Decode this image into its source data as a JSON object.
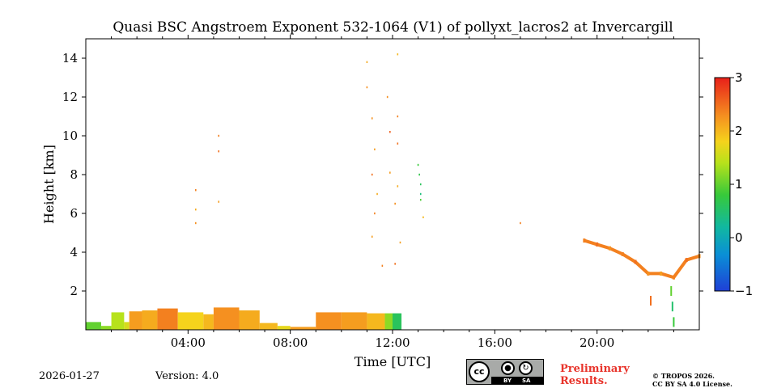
{
  "chart_data": {
    "type": "heatmap",
    "title": "Quasi BSC Angstroem Exponent 532-1064 (V1) of pollyxt_lacros2 at Invercargill",
    "xlabel": "Time [UTC]",
    "ylabel": "Height [km]",
    "xlim_hours": [
      0,
      24
    ],
    "ylim_km": [
      0,
      15
    ],
    "x_ticks": [
      {
        "value": 4,
        "label": "04:00"
      },
      {
        "value": 8,
        "label": "08:00"
      },
      {
        "value": 12,
        "label": "12:00"
      },
      {
        "value": 16,
        "label": "16:00"
      },
      {
        "value": 20,
        "label": "20:00"
      }
    ],
    "y_ticks": [
      {
        "value": 2,
        "label": "2"
      },
      {
        "value": 4,
        "label": "4"
      },
      {
        "value": 6,
        "label": "6"
      },
      {
        "value": 8,
        "label": "8"
      },
      {
        "value": 10,
        "label": "10"
      },
      {
        "value": 12,
        "label": "12"
      },
      {
        "value": 14,
        "label": "14"
      }
    ],
    "colorbar": {
      "vmin": -1,
      "vmax": 3,
      "ticks": [
        {
          "value": 3,
          "label": "3"
        },
        {
          "value": 2,
          "label": "2"
        },
        {
          "value": 1,
          "label": "1"
        },
        {
          "value": 0,
          "label": "0"
        },
        {
          "value": -1,
          "label": "−1"
        }
      ]
    },
    "boundary_layer_segments": [
      {
        "t0": 0.0,
        "t1": 0.6,
        "h0": 0.0,
        "h1": 0.4,
        "val": 1.0
      },
      {
        "t0": 0.6,
        "t1": 1.0,
        "h0": 0.0,
        "h1": 0.2,
        "val": 1.2
      },
      {
        "t0": 1.0,
        "t1": 1.5,
        "h0": 0.0,
        "h1": 0.9,
        "val": 1.4
      },
      {
        "t0": 1.5,
        "t1": 1.7,
        "h0": 0.0,
        "h1": 0.4,
        "val": 1.6
      },
      {
        "t0": 1.7,
        "t1": 2.2,
        "h0": 0.0,
        "h1": 0.95,
        "val": 2.2
      },
      {
        "t0": 2.2,
        "t1": 2.8,
        "h0": 0.0,
        "h1": 1.0,
        "val": 2.1
      },
      {
        "t0": 2.8,
        "t1": 3.6,
        "h0": 0.0,
        "h1": 1.1,
        "val": 2.4
      },
      {
        "t0": 3.6,
        "t1": 4.6,
        "h0": 0.0,
        "h1": 0.9,
        "val": 1.8
      },
      {
        "t0": 4.6,
        "t1": 5.0,
        "h0": 0.0,
        "h1": 0.8,
        "val": 2.0
      },
      {
        "t0": 5.0,
        "t1": 6.0,
        "h0": 0.0,
        "h1": 1.15,
        "val": 2.3
      },
      {
        "t0": 6.0,
        "t1": 6.8,
        "h0": 0.0,
        "h1": 1.0,
        "val": 2.1
      },
      {
        "t0": 6.8,
        "t1": 7.5,
        "h0": 0.0,
        "h1": 0.35,
        "val": 2.0
      },
      {
        "t0": 7.5,
        "t1": 8.0,
        "h0": 0.0,
        "h1": 0.2,
        "val": 1.7
      },
      {
        "t0": 8.0,
        "t1": 9.0,
        "h0": 0.0,
        "h1": 0.15,
        "val": 2.2
      },
      {
        "t0": 9.0,
        "t1": 10.0,
        "h0": 0.0,
        "h1": 0.9,
        "val": 2.3
      },
      {
        "t0": 10.0,
        "t1": 11.0,
        "h0": 0.0,
        "h1": 0.9,
        "val": 2.2
      },
      {
        "t0": 11.0,
        "t1": 11.7,
        "h0": 0.0,
        "h1": 0.85,
        "val": 2.0
      },
      {
        "t0": 11.7,
        "t1": 12.0,
        "h0": 0.0,
        "h1": 0.85,
        "val": 1.2
      },
      {
        "t0": 12.0,
        "t1": 12.35,
        "h0": 0.0,
        "h1": 0.85,
        "val": 0.6
      }
    ],
    "cloud_points": [
      {
        "t": 4.3,
        "h": 5.5,
        "val": 2.3
      },
      {
        "t": 4.3,
        "h": 6.2,
        "val": 2.1
      },
      {
        "t": 4.3,
        "h": 7.2,
        "val": 2.4
      },
      {
        "t": 5.2,
        "h": 6.6,
        "val": 2.2
      },
      {
        "t": 5.2,
        "h": 9.2,
        "val": 2.5
      },
      {
        "t": 5.2,
        "h": 10.0,
        "val": 2.4
      },
      {
        "t": 11.2,
        "h": 10.9,
        "val": 2.3
      },
      {
        "t": 11.3,
        "h": 9.3,
        "val": 2.2
      },
      {
        "t": 11.2,
        "h": 8.0,
        "val": 2.5
      },
      {
        "t": 11.4,
        "h": 7.0,
        "val": 2.1
      },
      {
        "t": 11.3,
        "h": 6.0,
        "val": 2.4
      },
      {
        "t": 11.2,
        "h": 4.8,
        "val": 2.2
      },
      {
        "t": 11.8,
        "h": 12.0,
        "val": 2.3
      },
      {
        "t": 11.9,
        "h": 10.2,
        "val": 2.6
      },
      {
        "t": 11.9,
        "h": 8.1,
        "val": 2.2
      },
      {
        "t": 12.1,
        "h": 6.5,
        "val": 2.3
      },
      {
        "t": 12.1,
        "h": 3.4,
        "val": 2.5
      },
      {
        "t": 12.2,
        "h": 14.2,
        "val": 2.0
      },
      {
        "t": 12.2,
        "h": 11.0,
        "val": 2.4
      },
      {
        "t": 11.0,
        "h": 13.8,
        "val": 2.1
      },
      {
        "t": 11.0,
        "h": 12.5,
        "val": 2.3
      },
      {
        "t": 12.2,
        "h": 9.6,
        "val": 2.5
      },
      {
        "t": 12.2,
        "h": 7.4,
        "val": 2.1
      },
      {
        "t": 12.3,
        "h": 4.5,
        "val": 2.2
      },
      {
        "t": 11.6,
        "h": 3.3,
        "val": 2.4
      },
      {
        "t": 13.2,
        "h": 5.8,
        "val": 2.0
      },
      {
        "t": 13.0,
        "h": 8.5,
        "val": 0.8
      },
      {
        "t": 13.05,
        "h": 8.0,
        "val": 0.7
      },
      {
        "t": 13.1,
        "h": 7.5,
        "val": 0.6
      },
      {
        "t": 13.1,
        "h": 7.0,
        "val": 0.4
      },
      {
        "t": 13.1,
        "h": 6.7,
        "val": 0.9
      },
      {
        "t": 17.0,
        "h": 5.5,
        "val": 2.4
      }
    ],
    "evening_layer": [
      {
        "t": 19.5,
        "h": 4.6,
        "val": 2.4
      },
      {
        "t": 20.0,
        "h": 4.4,
        "val": 2.5
      },
      {
        "t": 20.5,
        "h": 4.2,
        "val": 2.3
      },
      {
        "t": 21.0,
        "h": 3.9,
        "val": 2.4
      },
      {
        "t": 21.5,
        "h": 3.5,
        "val": 2.5
      },
      {
        "t": 22.0,
        "h": 2.9,
        "val": 2.3
      },
      {
        "t": 22.5,
        "h": 2.9,
        "val": 2.2
      },
      {
        "t": 23.0,
        "h": 2.7,
        "val": 2.4
      },
      {
        "t": 23.5,
        "h": 3.6,
        "val": 2.5
      },
      {
        "t": 24.0,
        "h": 3.8,
        "val": 2.3
      }
    ],
    "evening_spots": [
      {
        "t": 22.1,
        "h": 1.5,
        "val": 2.5
      },
      {
        "t": 22.9,
        "h": 2.0,
        "val": 1.0
      },
      {
        "t": 22.95,
        "h": 1.2,
        "val": 0.5
      },
      {
        "t": 23.0,
        "h": 0.4,
        "val": 0.8
      }
    ]
  },
  "footer": {
    "date": "2026-01-27",
    "version": "Version: 4.0",
    "license_cc": "cc",
    "license_by": "BY",
    "license_sa": "SA",
    "prelim_line1": "Preliminary",
    "prelim_line2": "Results.",
    "copyright_line1": "© TROPOS 2026.",
    "copyright_line2": "CC BY SA 4.0 License."
  }
}
